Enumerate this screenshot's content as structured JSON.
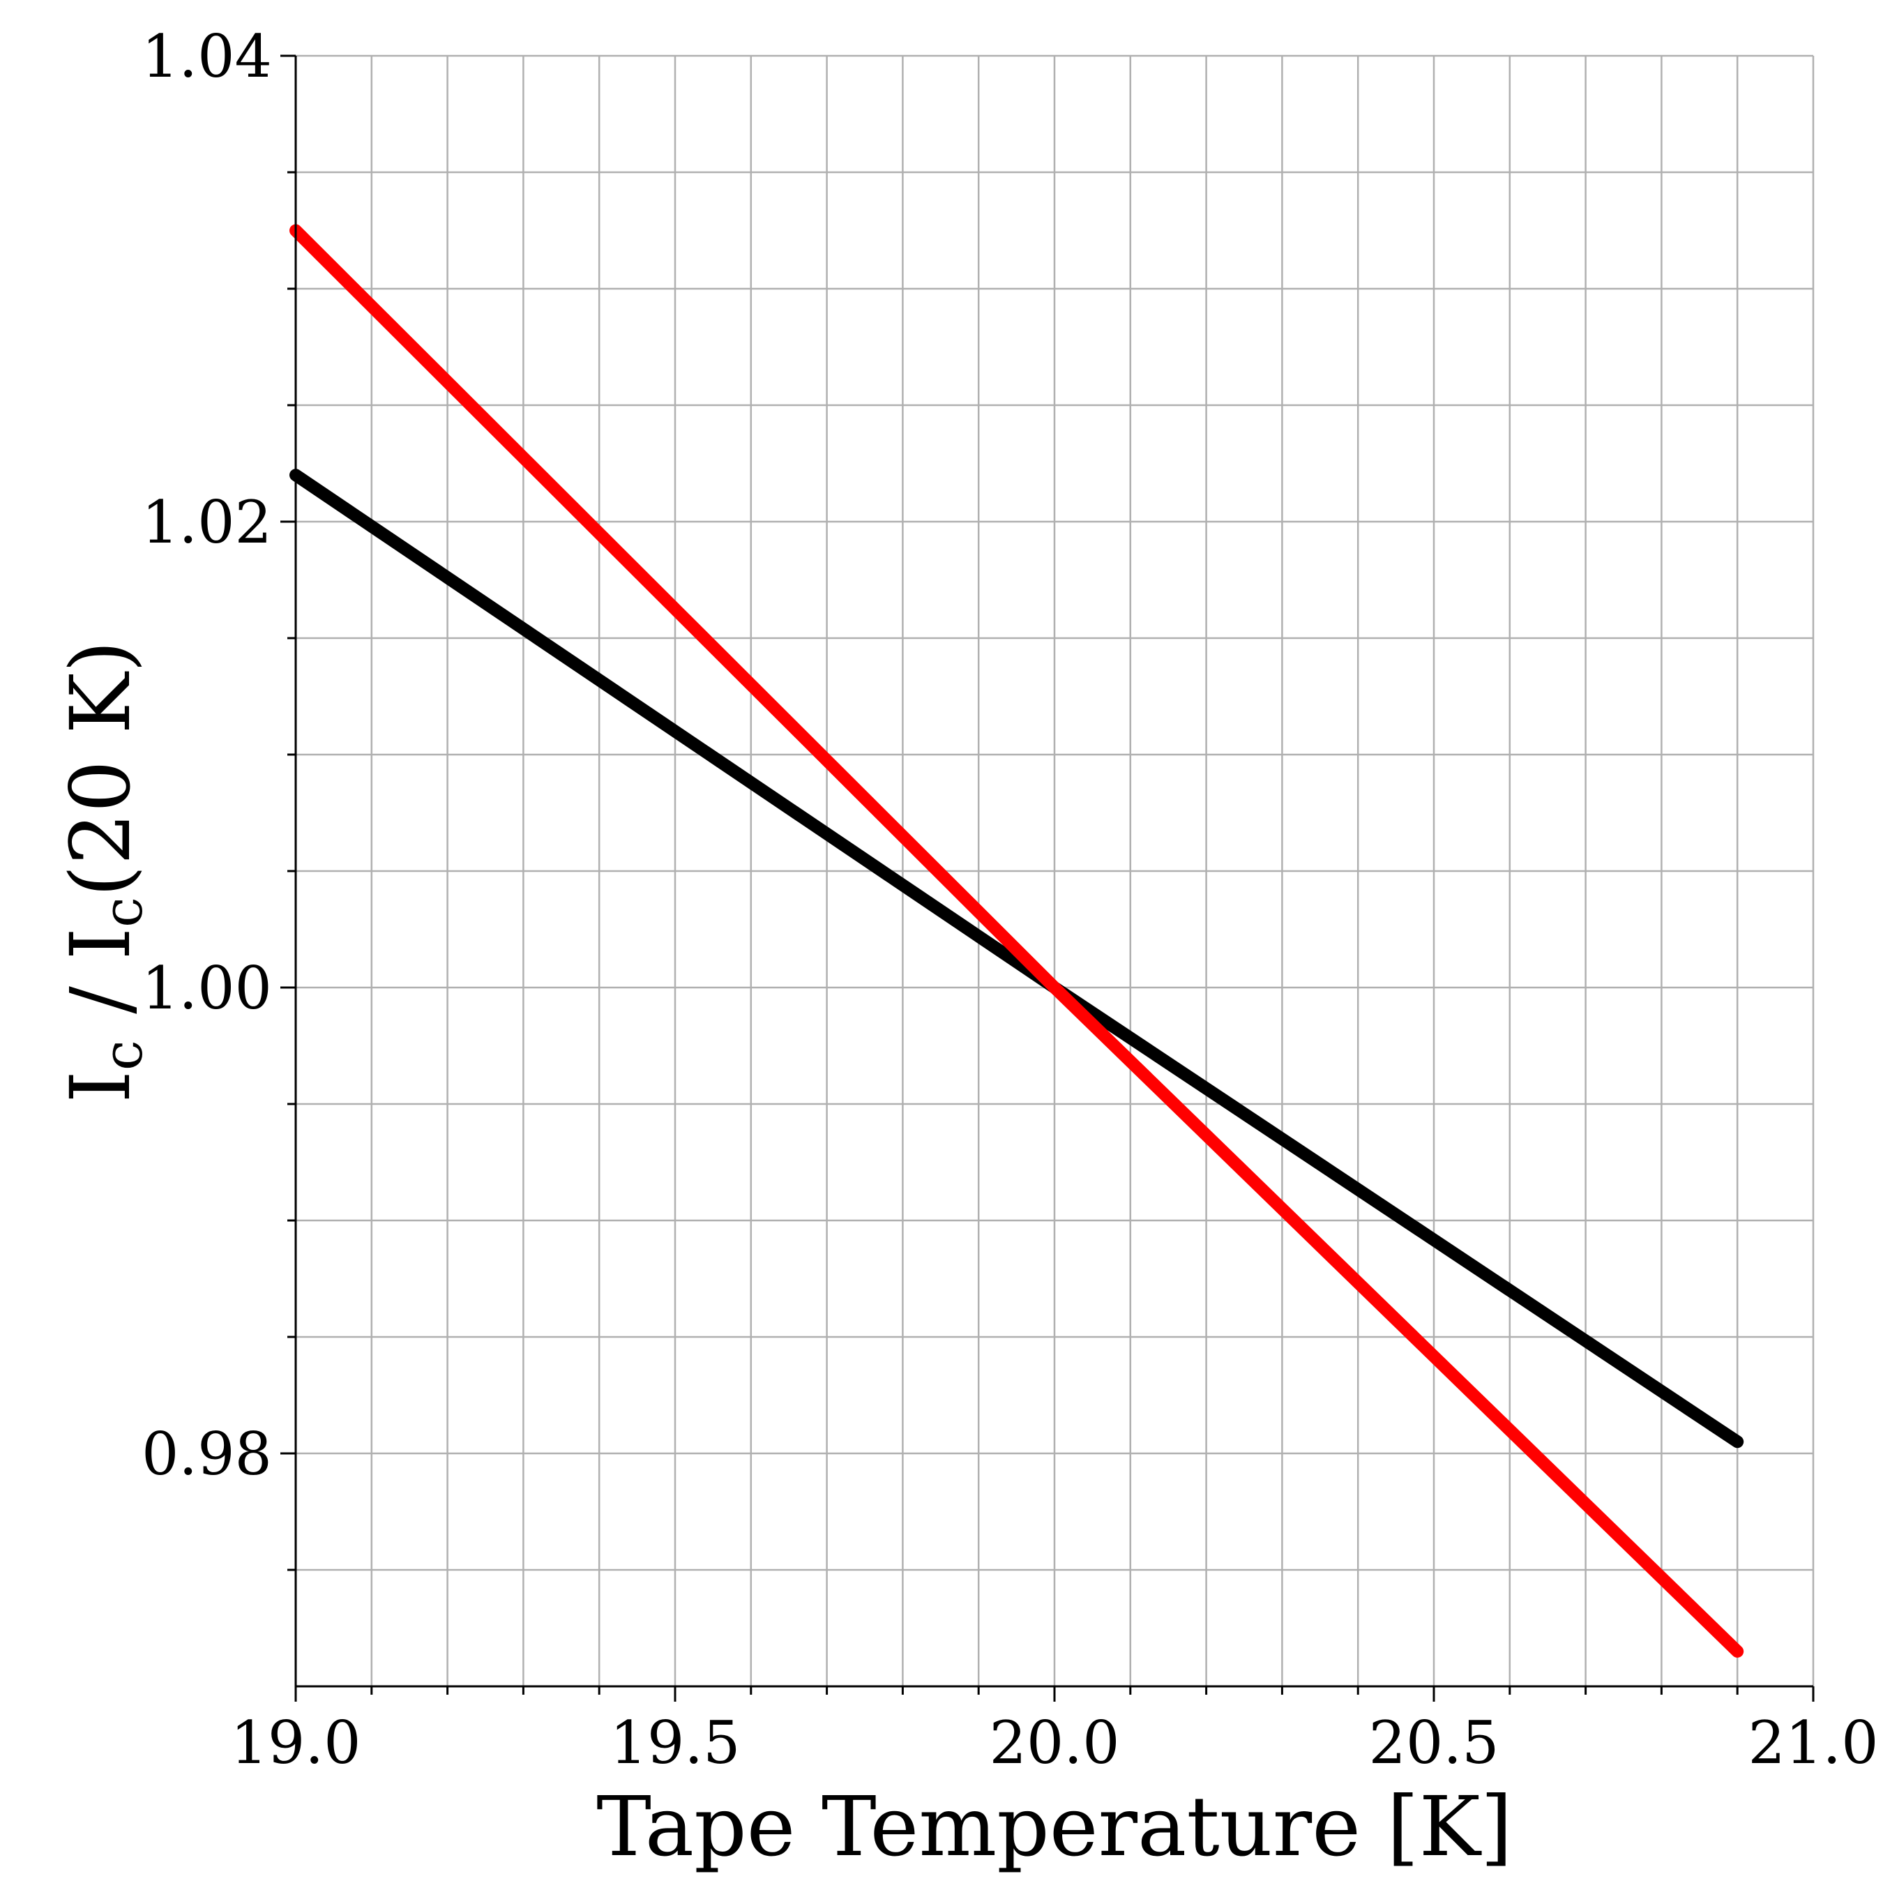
{
  "chart_data": {
    "type": "line",
    "title": "",
    "xlabel": "Tape Temperature [K]",
    "ylabel_parts": {
      "main1": "I",
      "sub1": "c",
      "slash": " / ",
      "main2": "I",
      "sub2": "c",
      "rest": "(20 K)"
    },
    "xlim": [
      19.0,
      21.0
    ],
    "ylim": [
      0.97,
      1.04
    ],
    "x_major_ticks": [
      19.0,
      19.5,
      20.0,
      20.5,
      21.0
    ],
    "x_tick_labels": [
      "19.0",
      "19.5",
      "20.0",
      "20.5",
      "21.0"
    ],
    "x_minor_ticks": [
      19.1,
      19.2,
      19.3,
      19.4,
      19.6,
      19.7,
      19.8,
      19.9,
      20.1,
      20.2,
      20.3,
      20.4,
      20.6,
      20.7,
      20.8,
      20.9
    ],
    "y_major_ticks": [
      0.98,
      1.0,
      1.02,
      1.04
    ],
    "y_tick_labels": [
      "0.98",
      "1.00",
      "1.02",
      "1.04"
    ],
    "y_minor_ticks": [
      0.975,
      0.985,
      0.99,
      0.995,
      1.005,
      1.01,
      1.015,
      1.025,
      1.03,
      1.035
    ],
    "grid": true,
    "series": [
      {
        "color": "#000000",
        "x": [
          19.0,
          20.0,
          20.9
        ],
        "y": [
          1.022,
          1.0,
          0.9805
        ]
      },
      {
        "color": "#ff0000",
        "x": [
          19.0,
          20.0,
          20.9
        ],
        "y": [
          1.0325,
          1.0,
          0.9715
        ]
      }
    ]
  }
}
